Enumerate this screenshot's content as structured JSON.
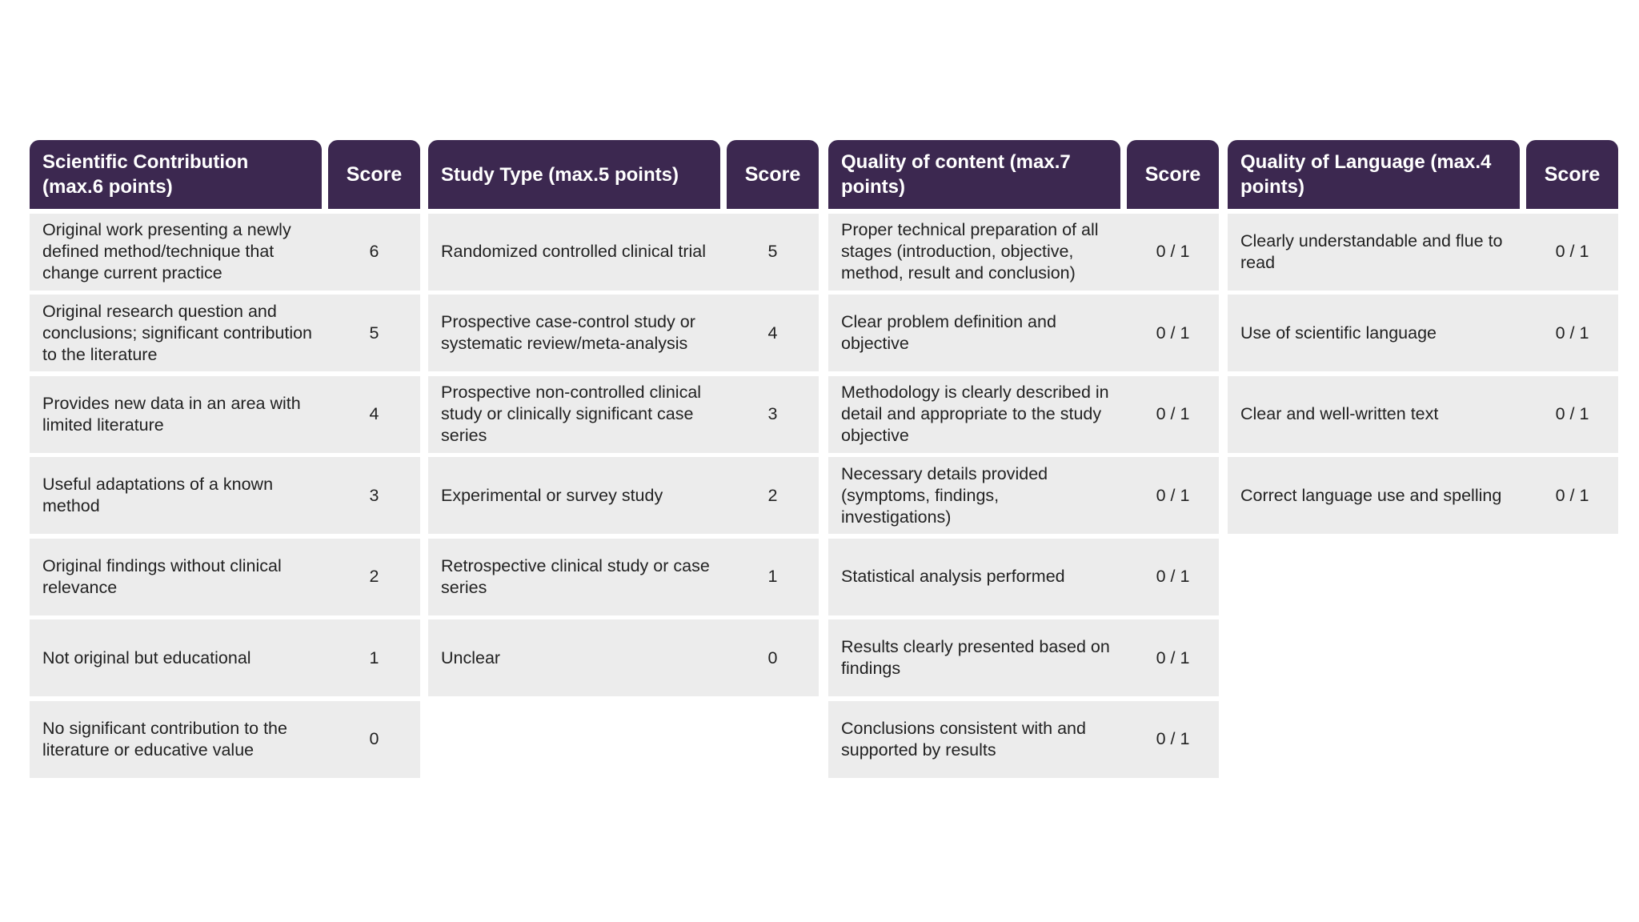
{
  "colors": {
    "header": "#3c2850",
    "row": "#ececec"
  },
  "groups": [
    {
      "title": "Scientific Contribution (max.6 points)",
      "score_label": "Score",
      "rows": [
        {
          "text": "Original work presenting a newly defined method/technique that change current practice",
          "score": "6"
        },
        {
          "text": "Original research question and conclusions; significant contribution to the literature",
          "score": "5"
        },
        {
          "text": "Provides new data in an area with limited literature",
          "score": "4"
        },
        {
          "text": "Useful adaptations of a known method",
          "score": "3"
        },
        {
          "text": "Original findings without clinical relevance",
          "score": "2"
        },
        {
          "text": "Not original but educational",
          "score": "1"
        },
        {
          "text": "No significant contribution to the literature or educative value",
          "score": "0"
        }
      ]
    },
    {
      "title": "Study Type (max.5 points)",
      "score_label": "Score",
      "rows": [
        {
          "text": "Randomized controlled clinical trial",
          "score": "5"
        },
        {
          "text": "Prospective case-control study or systematic review/meta-analysis",
          "score": "4"
        },
        {
          "text": "Prospective non-controlled clinical study or clinically significant case series",
          "score": "3"
        },
        {
          "text": "Experimental or survey study",
          "score": "2"
        },
        {
          "text": "Retrospective clinical study or case series",
          "score": "1"
        },
        {
          "text": "Unclear",
          "score": "0"
        }
      ]
    },
    {
      "title": "Quality of content (max.7 points)",
      "score_label": "Score",
      "rows": [
        {
          "text": "Proper technical preparation of all stages (introduction, objective, method, result and conclusion)",
          "score": "0 / 1"
        },
        {
          "text": "Clear problem definition and objective",
          "score": "0 / 1"
        },
        {
          "text": "Methodology is clearly described in detail and appropriate to the study objective",
          "score": "0 / 1"
        },
        {
          "text": "Necessary details provided (symptoms, findings, investigations)",
          "score": "0 / 1"
        },
        {
          "text": "Statistical analysis performed",
          "score": "0 / 1"
        },
        {
          "text": "Results clearly presented based on findings",
          "score": "0 / 1"
        },
        {
          "text": "Conclusions consistent with and supported by results",
          "score": "0 / 1"
        }
      ]
    },
    {
      "title": "Quality of Language (max.4 points)",
      "score_label": "Score",
      "rows": [
        {
          "text": "Clearly understandable and flue to read",
          "score": "0 / 1"
        },
        {
          "text": "Use of scientific language",
          "score": "0 / 1"
        },
        {
          "text": "Clear and well-written text",
          "score": "0 / 1"
        },
        {
          "text": "Correct language use and spelling",
          "score": "0 / 1"
        }
      ]
    }
  ]
}
